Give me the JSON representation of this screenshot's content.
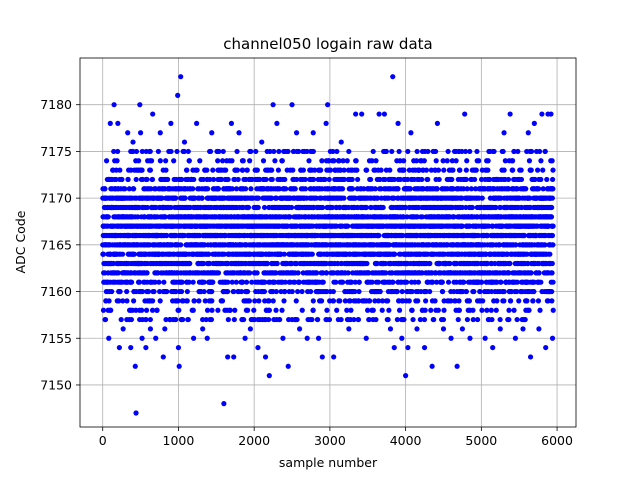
{
  "chart_data": {
    "type": "scatter",
    "title": "channel050 logain raw data",
    "xlabel": "sample number",
    "ylabel": "ADC Code",
    "xlim": [
      -300,
      6250
    ],
    "ylim": [
      7145.5,
      7185
    ],
    "xticks": [
      0,
      1000,
      2000,
      3000,
      4000,
      5000,
      6000
    ],
    "yticks": [
      7150,
      7155,
      7160,
      7165,
      7170,
      7175,
      7180
    ],
    "grid": true,
    "marker_color": "#0000ff",
    "dense_band": {
      "x_range": [
        0,
        5950
      ],
      "y_range": [
        7157,
        7175
      ],
      "samples": 5950
    },
    "outliers": [
      {
        "x": 30,
        "y": 7157
      },
      {
        "x": 80,
        "y": 7155
      },
      {
        "x": 100,
        "y": 7178
      },
      {
        "x": 150,
        "y": 7180
      },
      {
        "x": 200,
        "y": 7178
      },
      {
        "x": 220,
        "y": 7154
      },
      {
        "x": 270,
        "y": 7156
      },
      {
        "x": 330,
        "y": 7177
      },
      {
        "x": 370,
        "y": 7154
      },
      {
        "x": 400,
        "y": 7176
      },
      {
        "x": 430,
        "y": 7152
      },
      {
        "x": 440,
        "y": 7147
      },
      {
        "x": 490,
        "y": 7180
      },
      {
        "x": 500,
        "y": 7177
      },
      {
        "x": 520,
        "y": 7155
      },
      {
        "x": 570,
        "y": 7154
      },
      {
        "x": 630,
        "y": 7156
      },
      {
        "x": 660,
        "y": 7179
      },
      {
        "x": 700,
        "y": 7155
      },
      {
        "x": 760,
        "y": 7177
      },
      {
        "x": 800,
        "y": 7153
      },
      {
        "x": 820,
        "y": 7156
      },
      {
        "x": 900,
        "y": 7178
      },
      {
        "x": 960,
        "y": 7157
      },
      {
        "x": 990,
        "y": 7181
      },
      {
        "x": 1000,
        "y": 7154
      },
      {
        "x": 1010,
        "y": 7152
      },
      {
        "x": 1030,
        "y": 7183
      },
      {
        "x": 1080,
        "y": 7176
      },
      {
        "x": 1130,
        "y": 7157
      },
      {
        "x": 1200,
        "y": 7155
      },
      {
        "x": 1240,
        "y": 7178
      },
      {
        "x": 1320,
        "y": 7156
      },
      {
        "x": 1380,
        "y": 7155
      },
      {
        "x": 1440,
        "y": 7177
      },
      {
        "x": 1520,
        "y": 7175
      },
      {
        "x": 1600,
        "y": 7148
      },
      {
        "x": 1650,
        "y": 7153
      },
      {
        "x": 1700,
        "y": 7178
      },
      {
        "x": 1730,
        "y": 7153
      },
      {
        "x": 1800,
        "y": 7177
      },
      {
        "x": 1880,
        "y": 7155
      },
      {
        "x": 1950,
        "y": 7156
      },
      {
        "x": 2050,
        "y": 7154
      },
      {
        "x": 2100,
        "y": 7176
      },
      {
        "x": 2150,
        "y": 7153
      },
      {
        "x": 2200,
        "y": 7151
      },
      {
        "x": 2250,
        "y": 7180
      },
      {
        "x": 2300,
        "y": 7178
      },
      {
        "x": 2380,
        "y": 7155
      },
      {
        "x": 2450,
        "y": 7152
      },
      {
        "x": 2500,
        "y": 7180
      },
      {
        "x": 2560,
        "y": 7177
      },
      {
        "x": 2600,
        "y": 7156
      },
      {
        "x": 2700,
        "y": 7155
      },
      {
        "x": 2780,
        "y": 7177
      },
      {
        "x": 2850,
        "y": 7155
      },
      {
        "x": 2900,
        "y": 7153
      },
      {
        "x": 2950,
        "y": 7178
      },
      {
        "x": 2970,
        "y": 7180
      },
      {
        "x": 3050,
        "y": 7153
      },
      {
        "x": 3150,
        "y": 7176
      },
      {
        "x": 3250,
        "y": 7156
      },
      {
        "x": 3340,
        "y": 7179
      },
      {
        "x": 3420,
        "y": 7179
      },
      {
        "x": 3480,
        "y": 7155
      },
      {
        "x": 3570,
        "y": 7157
      },
      {
        "x": 3650,
        "y": 7179
      },
      {
        "x": 3720,
        "y": 7179
      },
      {
        "x": 3800,
        "y": 7156
      },
      {
        "x": 3830,
        "y": 7183
      },
      {
        "x": 3850,
        "y": 7154
      },
      {
        "x": 3900,
        "y": 7178
      },
      {
        "x": 3950,
        "y": 7155
      },
      {
        "x": 4000,
        "y": 7151
      },
      {
        "x": 4030,
        "y": 7154
      },
      {
        "x": 4070,
        "y": 7177
      },
      {
        "x": 4150,
        "y": 7156
      },
      {
        "x": 4250,
        "y": 7154
      },
      {
        "x": 4350,
        "y": 7152
      },
      {
        "x": 4420,
        "y": 7178
      },
      {
        "x": 4500,
        "y": 7156
      },
      {
        "x": 4600,
        "y": 7155
      },
      {
        "x": 4680,
        "y": 7152
      },
      {
        "x": 4750,
        "y": 7156
      },
      {
        "x": 4780,
        "y": 7179
      },
      {
        "x": 4850,
        "y": 7155
      },
      {
        "x": 4950,
        "y": 7157
      },
      {
        "x": 5050,
        "y": 7155
      },
      {
        "x": 5150,
        "y": 7154
      },
      {
        "x": 5250,
        "y": 7156
      },
      {
        "x": 5300,
        "y": 7177
      },
      {
        "x": 5380,
        "y": 7179
      },
      {
        "x": 5450,
        "y": 7155
      },
      {
        "x": 5550,
        "y": 7156
      },
      {
        "x": 5620,
        "y": 7177
      },
      {
        "x": 5650,
        "y": 7153
      },
      {
        "x": 5700,
        "y": 7178
      },
      {
        "x": 5760,
        "y": 7156
      },
      {
        "x": 5800,
        "y": 7179
      },
      {
        "x": 5850,
        "y": 7154
      },
      {
        "x": 5880,
        "y": 7179
      },
      {
        "x": 5920,
        "y": 7179
      },
      {
        "x": 5940,
        "y": 7155
      }
    ]
  }
}
